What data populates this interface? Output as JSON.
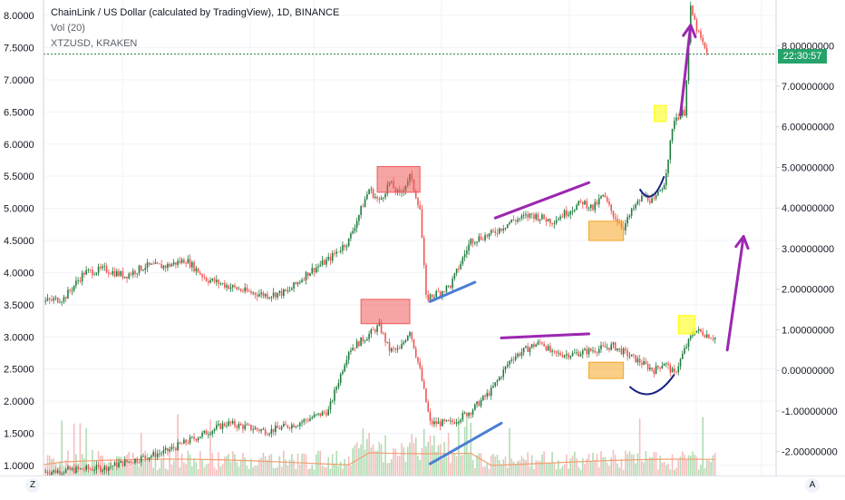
{
  "header": {
    "title": "ChainLink / US Dollar (calculated by TradingView), 1D, BINANCE",
    "volume": "Vol (20)",
    "overlay": "XTZUSD, KRAKEN"
  },
  "current_time_label": "22:30:57",
  "corner_left": "Z",
  "corner_right": "A",
  "colors": {
    "up": "#26a69a",
    "up_dark": "#1e7a3c",
    "down": "#ef5350",
    "purple": "#9c27b0",
    "blue": "#4a7fd4",
    "red_box": "#f05a5a",
    "orange_box": "#f5a623",
    "yellow_box": "#ffff00",
    "navy": "#1a237e",
    "grid": "#f0f3fa",
    "axis_text": "#131722"
  },
  "chart_data": {
    "type": "candlestick",
    "left_axis": {
      "ticks": [
        "8.0000",
        "7.5000",
        "7.0000",
        "6.5000",
        "6.0000",
        "5.5000",
        "5.0000",
        "4.5000",
        "4.0000",
        "3.5000",
        "3.0000",
        "2.5000",
        "2.0000",
        "1.5000",
        "1.0000"
      ],
      "range": [
        0.9,
        8.1
      ]
    },
    "right_axis": {
      "ticks": [
        "8.00000000",
        "7.00000000",
        "6.00000000",
        "5.00000000",
        "4.00000000",
        "3.00000000",
        "2.00000000",
        "1.00000000",
        "0.00000000",
        "-1.00000000",
        "-2.00000000"
      ],
      "range": [
        -2.5,
        8.9
      ]
    },
    "x_axis": {
      "ticks": [
        "Nov",
        "2020",
        "Feb",
        "Apr",
        "Jun",
        "Aug",
        "Sep"
      ]
    },
    "series": [
      {
        "name": "ChainLink / US Dollar",
        "axis": "left",
        "points": [
          [
            0,
            3.55
          ],
          [
            10,
            3.6
          ],
          [
            20,
            4.0
          ],
          [
            30,
            4.05
          ],
          [
            40,
            3.95
          ],
          [
            50,
            4.1
          ],
          [
            60,
            4.1
          ],
          [
            70,
            4.2
          ],
          [
            80,
            3.9
          ],
          [
            90,
            3.8
          ],
          [
            100,
            3.7
          ],
          [
            110,
            3.65
          ],
          [
            120,
            3.7
          ],
          [
            130,
            4.0
          ],
          [
            140,
            4.2
          ],
          [
            150,
            4.5
          ],
          [
            160,
            5.3
          ],
          [
            165,
            5.1
          ],
          [
            170,
            5.4
          ],
          [
            175,
            5.2
          ],
          [
            180,
            5.5
          ],
          [
            185,
            5.0
          ],
          [
            188,
            3.6
          ],
          [
            195,
            3.7
          ],
          [
            200,
            3.8
          ],
          [
            210,
            4.5
          ],
          [
            220,
            4.6
          ],
          [
            230,
            4.8
          ],
          [
            240,
            4.9
          ],
          [
            250,
            4.8
          ],
          [
            260,
            5.0
          ],
          [
            265,
            5.1
          ],
          [
            270,
            5.0
          ],
          [
            275,
            5.2
          ],
          [
            280,
            4.9
          ],
          [
            285,
            4.7
          ],
          [
            290,
            5.0
          ],
          [
            295,
            5.2
          ],
          [
            300,
            5.1
          ],
          [
            305,
            5.4
          ],
          [
            310,
            6.4
          ],
          [
            315,
            6.5
          ],
          [
            318,
            8.1
          ],
          [
            322,
            7.7
          ],
          [
            326,
            7.4
          ]
        ]
      },
      {
        "name": "XTZUSD, KRAKEN",
        "axis": "right",
        "points": [
          [
            0,
            -2.5
          ],
          [
            30,
            -2.4
          ],
          [
            60,
            -2.0
          ],
          [
            90,
            -1.3
          ],
          [
            110,
            -1.5
          ],
          [
            125,
            -1.3
          ],
          [
            140,
            -1.0
          ],
          [
            150,
            0.5
          ],
          [
            158,
            0.8
          ],
          [
            165,
            1.1
          ],
          [
            170,
            0.5
          ],
          [
            175,
            0.5
          ],
          [
            180,
            1.0
          ],
          [
            185,
            0.0
          ],
          [
            190,
            -1.3
          ],
          [
            200,
            -1.3
          ],
          [
            210,
            -1.0
          ],
          [
            220,
            -0.5
          ],
          [
            230,
            0.3
          ],
          [
            240,
            0.6
          ],
          [
            245,
            0.7
          ],
          [
            250,
            0.4
          ],
          [
            260,
            0.4
          ],
          [
            270,
            0.5
          ],
          [
            280,
            0.6
          ],
          [
            290,
            0.3
          ],
          [
            300,
            0.0
          ],
          [
            305,
            0.2
          ],
          [
            310,
            -0.1
          ],
          [
            315,
            0.5
          ],
          [
            320,
            1.0
          ],
          [
            325,
            0.9
          ],
          [
            330,
            0.8
          ]
        ]
      }
    ],
    "annotations": [
      {
        "type": "rect",
        "color": "red",
        "x": [
          164,
          185
        ],
        "axis": "left",
        "y": [
          5.25,
          5.65
        ]
      },
      {
        "type": "rect",
        "color": "red",
        "x": [
          156,
          180
        ],
        "axis": "right",
        "y": [
          1.15,
          1.75
        ]
      },
      {
        "type": "rect",
        "color": "orange",
        "x": [
          268,
          285
        ],
        "axis": "left",
        "y": [
          4.5,
          4.8
        ]
      },
      {
        "type": "rect",
        "color": "orange",
        "x": [
          268,
          285
        ],
        "axis": "right",
        "y": [
          -0.2,
          0.2
        ]
      },
      {
        "type": "rect",
        "color": "yellow",
        "x": [
          300,
          306
        ],
        "axis": "left",
        "y": [
          6.35,
          6.6
        ]
      },
      {
        "type": "rect",
        "color": "yellow",
        "x": [
          312,
          320
        ],
        "axis": "right",
        "y": [
          0.9,
          1.35
        ]
      },
      {
        "type": "line",
        "color": "blue",
        "axis": "left",
        "from": [
          190,
          3.55
        ],
        "to": [
          212,
          3.85
        ]
      },
      {
        "type": "line",
        "color": "blue",
        "axis": "right",
        "from": [
          190,
          -2.3
        ],
        "to": [
          225,
          -1.3
        ]
      },
      {
        "type": "line",
        "color": "purple",
        "axis": "left",
        "from": [
          222,
          4.85
        ],
        "to": [
          268,
          5.4
        ]
      },
      {
        "type": "line",
        "color": "purple",
        "axis": "right",
        "from": [
          225,
          0.8
        ],
        "to": [
          268,
          0.9
        ]
      },
      {
        "type": "arrow",
        "color": "purple",
        "axis": "left",
        "from": [
          313,
          6.45
        ],
        "to": [
          318,
          7.85
        ]
      },
      {
        "type": "arrow",
        "color": "purple",
        "axis": "right",
        "from": [
          336,
          0.5
        ],
        "to": [
          344,
          3.3
        ]
      },
      {
        "type": "curve",
        "color": "navy",
        "axis": "left",
        "from": [
          293,
          5.3
        ],
        "to": [
          305,
          5.5
        ]
      },
      {
        "type": "curve",
        "color": "navy",
        "axis": "right",
        "from": [
          288,
          -0.4
        ],
        "to": [
          310,
          -0.1
        ]
      }
    ]
  }
}
